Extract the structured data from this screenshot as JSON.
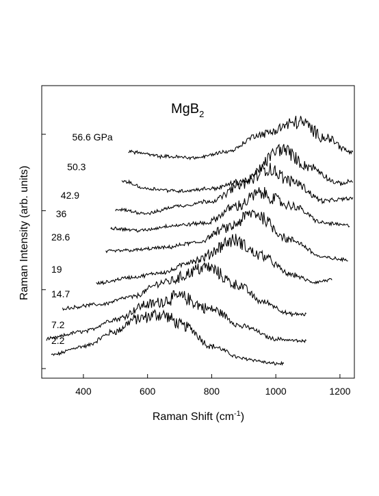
{
  "chart_data": {
    "type": "line",
    "title": "MgB",
    "title_subscript": "2",
    "xlabel": "Raman Shift (cm",
    "xlabel_superscript": "-1",
    "xlabel_suffix": ")",
    "ylabel": "Raman Intensity (arb. units)",
    "xlim": [
      270,
      1245
    ],
    "ylim": [
      0,
      10
    ],
    "xticks": [
      400,
      600,
      800,
      1000,
      1200
    ],
    "yticks": [
      0,
      3.2,
      6.4,
      9.5
    ],
    "y_tick_labels_shown": false,
    "grid": false,
    "legend": "none",
    "series": [
      {
        "label": "2.2",
        "x_range": [
          300,
          1025
        ],
        "peak_x": 640,
        "peak_width": 130,
        "values": [
          [
            300,
            0.55
          ],
          [
            400,
            0.9
          ],
          [
            500,
            1.5
          ],
          [
            560,
            2.0
          ],
          [
            640,
            2.2
          ],
          [
            720,
            1.7
          ],
          [
            800,
            0.9
          ],
          [
            900,
            0.4
          ],
          [
            1000,
            0.2
          ],
          [
            1025,
            0.2
          ]
        ]
      },
      {
        "label": "7.2",
        "x_range": [
          285,
          1095
        ],
        "peak_x": 700,
        "peak_width": 150,
        "values": [
          [
            285,
            1.2
          ],
          [
            400,
            1.5
          ],
          [
            500,
            2.0
          ],
          [
            600,
            2.6
          ],
          [
            700,
            2.9
          ],
          [
            800,
            2.4
          ],
          [
            900,
            1.7
          ],
          [
            1000,
            1.2
          ],
          [
            1095,
            1.1
          ]
        ]
      },
      {
        "label": "14.7",
        "x_range": [
          335,
          1095
        ],
        "peak_x": 785,
        "peak_width": 150,
        "values": [
          [
            335,
            2.45
          ],
          [
            450,
            2.6
          ],
          [
            550,
            2.9
          ],
          [
            650,
            3.5
          ],
          [
            785,
            4.1
          ],
          [
            880,
            3.4
          ],
          [
            960,
            2.7
          ],
          [
            1050,
            2.2
          ],
          [
            1095,
            2.2
          ]
        ]
      },
      {
        "label": "19",
        "x_range": [
          440,
          1175
        ],
        "peak_x": 870,
        "peak_width": 130,
        "values": [
          [
            440,
            3.45
          ],
          [
            550,
            3.7
          ],
          [
            650,
            3.9
          ],
          [
            750,
            4.4
          ],
          [
            870,
            5.2
          ],
          [
            950,
            4.6
          ],
          [
            1050,
            3.8
          ],
          [
            1120,
            3.5
          ],
          [
            1175,
            3.6
          ]
        ]
      },
      {
        "label": "28.6",
        "x_range": [
          470,
          1225
        ],
        "peak_x": 930,
        "peak_width": 120,
        "values": [
          [
            470,
            4.75
          ],
          [
            550,
            4.8
          ],
          [
            650,
            4.9
          ],
          [
            750,
            5.1
          ],
          [
            850,
            5.7
          ],
          [
            930,
            6.3
          ],
          [
            1050,
            5.2
          ],
          [
            1150,
            4.5
          ],
          [
            1225,
            4.4
          ]
        ]
      },
      {
        "label": "36",
        "x_range": [
          485,
          1230
        ],
        "peak_x": 950,
        "peak_width": 120,
        "values": [
          [
            485,
            5.7
          ],
          [
            580,
            5.6
          ],
          [
            680,
            5.8
          ],
          [
            780,
            5.9
          ],
          [
            880,
            6.6
          ],
          [
            950,
            7.1
          ],
          [
            1050,
            6.6
          ],
          [
            1150,
            5.9
          ],
          [
            1230,
            5.8
          ]
        ]
      },
      {
        "label": "42.9",
        "x_range": [
          500,
          1240
        ],
        "peak_x": 975,
        "peak_width": 120,
        "values": [
          [
            500,
            6.45
          ],
          [
            600,
            6.3
          ],
          [
            700,
            6.6
          ],
          [
            800,
            6.8
          ],
          [
            900,
            7.5
          ],
          [
            975,
            8.1
          ],
          [
            1050,
            7.6
          ],
          [
            1150,
            6.8
          ],
          [
            1240,
            6.9
          ]
        ]
      },
      {
        "label": "50.3",
        "x_range": [
          520,
          1240
        ],
        "peak_x": 1020,
        "peak_width": 120,
        "values": [
          [
            520,
            7.6
          ],
          [
            600,
            7.3
          ],
          [
            700,
            7.2
          ],
          [
            800,
            7.3
          ],
          [
            900,
            7.6
          ],
          [
            1020,
            8.9
          ],
          [
            1100,
            8.2
          ],
          [
            1200,
            7.5
          ],
          [
            1240,
            7.6
          ]
        ]
      },
      {
        "label": "56.6 GPa",
        "x_range": [
          540,
          1240
        ],
        "peak_x": 1075,
        "peak_width": 120,
        "values": [
          [
            540,
            8.8
          ],
          [
            650,
            8.6
          ],
          [
            750,
            8.55
          ],
          [
            850,
            8.8
          ],
          [
            950,
            9.5
          ],
          [
            1075,
            10.0
          ],
          [
            1150,
            9.4
          ],
          [
            1240,
            8.75
          ]
        ]
      }
    ]
  }
}
